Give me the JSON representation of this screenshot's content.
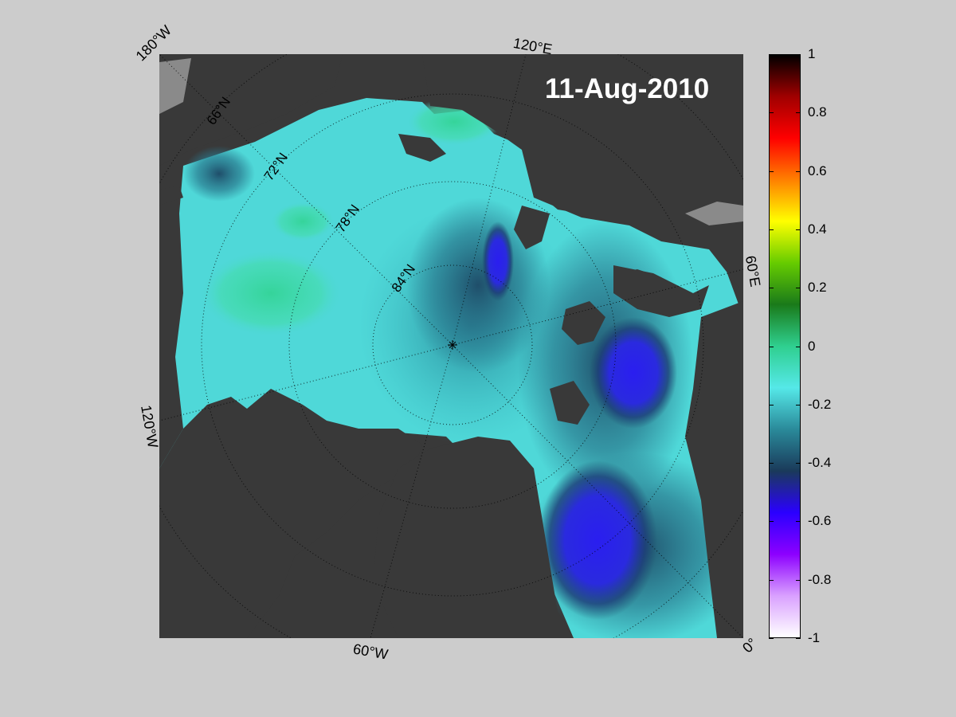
{
  "date_label": "11-Aug-2010",
  "map": {
    "corner_labels": {
      "top_left": "180°W",
      "top": "120°E",
      "right": "60°E",
      "left": "120°W",
      "bottom": "60°W",
      "bottom_right": "0°"
    },
    "latitude_labels": [
      "66°N",
      "72°N",
      "78°N",
      "84°N"
    ],
    "colors": {
      "land": "#393939",
      "ice_shelf": "#8a8a8a",
      "ocean_base": "#4fd8d8"
    }
  },
  "colorbar": {
    "ticks": [
      "1",
      "0.8",
      "0.6",
      "0.4",
      "0.2",
      "0",
      "-0.2",
      "-0.4",
      "-0.6",
      "-0.8",
      "-1"
    ],
    "range": [
      -1,
      1
    ],
    "stops": [
      "#ffffff",
      "#d9a0ff",
      "#8c00ff",
      "#2a00ff",
      "#1a3a5a",
      "#2a8a9a",
      "#55e8e8",
      "#2fcf8f",
      "#1a7a1a",
      "#66cc00",
      "#ffff00",
      "#ff8000",
      "#ff0000",
      "#a00000",
      "#000000"
    ]
  }
}
